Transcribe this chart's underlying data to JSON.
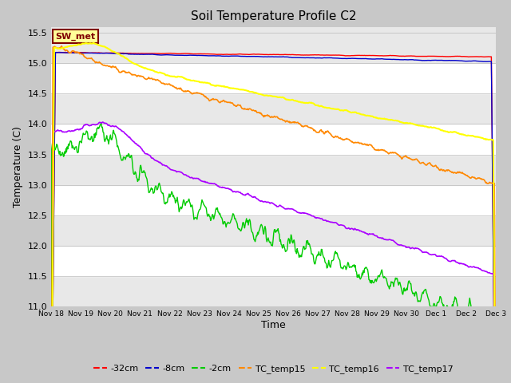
{
  "title": "Soil Temperature Profile C2",
  "xlabel": "Time",
  "ylabel": "Temperature (C)",
  "ylim": [
    11.0,
    15.6
  ],
  "yticks": [
    11.0,
    11.5,
    12.0,
    12.5,
    13.0,
    13.5,
    14.0,
    14.5,
    15.0,
    15.5
  ],
  "fig_bg": "#c8c8c8",
  "plot_bg": "#e8e8e8",
  "series": {
    "-32cm": {
      "color": "#ff0000"
    },
    "-8cm": {
      "color": "#0000cc"
    },
    "-2cm": {
      "color": "#00cc00"
    },
    "TC_temp15": {
      "color": "#ff8800"
    },
    "TC_temp16": {
      "color": "#ffff00"
    },
    "TC_temp17": {
      "color": "#aa00ff"
    }
  },
  "annotation": {
    "text": "SW_met",
    "text_color": "#800000",
    "box_facecolor": "#ffff99",
    "box_edgecolor": "#800000"
  },
  "num_points": 720,
  "seed": 42,
  "stripe_colors": [
    "#ffffff",
    "#e0e0e0"
  ]
}
